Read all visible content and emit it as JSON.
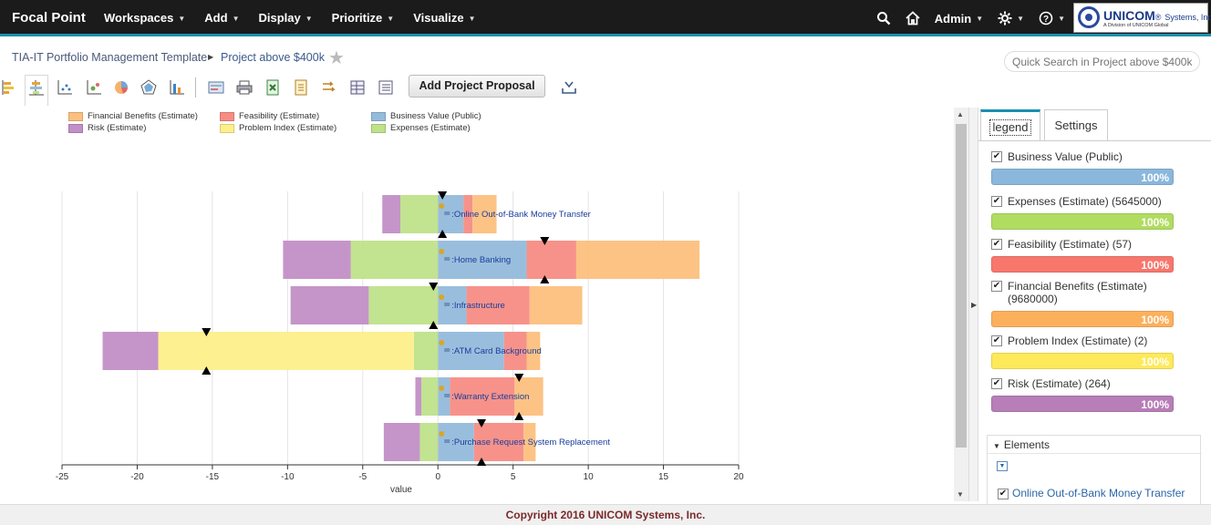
{
  "app": {
    "brand": "Focal Point",
    "nav": [
      "Workspaces",
      "Add",
      "Display",
      "Prioritize",
      "Visualize"
    ],
    "user": "Admin",
    "logo": {
      "name": "UNICOM",
      "suffix": "Systems, Inc.",
      "tagline": "A Division of UNICOM Global"
    }
  },
  "breadcrumb": {
    "workspace": "TIA-IT Portfolio Management Template",
    "view": "Project above $400k"
  },
  "search": {
    "placeholder": "Quick Search in Project above $400k"
  },
  "toolbar": {
    "add_proposal": "Add Project Proposal"
  },
  "colors": {
    "financial": "#fcc07e",
    "feasibility": "#f78c84",
    "business": "#93bbdb",
    "risk": "#c28fc6",
    "problem": "#fdef8a",
    "expenses": "#bfe18a"
  },
  "chart_data": {
    "type": "bar",
    "orientation": "horizontal-stacked-diverging",
    "xlabel": "value",
    "xlim": [
      -25,
      20
    ],
    "xticks": [
      -25,
      -20,
      -15,
      -10,
      -5,
      0,
      5,
      10,
      15,
      20
    ],
    "legend": [
      {
        "name": "Financial Benefits (Estimate)",
        "color": "#fcc07e"
      },
      {
        "name": "Feasibility (Estimate)",
        "color": "#f78c84"
      },
      {
        "name": "Business Value (Public)",
        "color": "#93bbdb"
      },
      {
        "name": "Risk (Estimate)",
        "color": "#c28fc6"
      },
      {
        "name": "Problem Index (Estimate)",
        "color": "#fdef8a"
      },
      {
        "name": "Expenses (Estimate)",
        "color": "#bfe18a"
      }
    ],
    "categories": [
      ":Online Out-of-Bank Money Transfer",
      ":Home Banking",
      ":Infrastructure",
      ":ATM Card Background",
      ":Warranty Extension",
      ":Purchase Request System Replacement"
    ],
    "series": [
      {
        "name": "Business Value (Public)",
        "side": "positive",
        "values": [
          1.7,
          5.9,
          1.9,
          4.4,
          0.8,
          2.4
        ]
      },
      {
        "name": "Feasibility (Estimate)",
        "side": "positive",
        "values": [
          0.6,
          3.3,
          4.2,
          1.5,
          4.3,
          3.3
        ]
      },
      {
        "name": "Financial Benefits (Estimate)",
        "side": "positive",
        "values": [
          1.6,
          8.2,
          3.5,
          0.9,
          1.9,
          0.8
        ]
      },
      {
        "name": "Expenses (Estimate)",
        "side": "negative",
        "values": [
          2.5,
          5.8,
          4.6,
          1.6,
          1.1,
          1.2
        ]
      },
      {
        "name": "Problem Index (Estimate)",
        "side": "negative",
        "values": [
          0,
          0,
          0,
          17.0,
          0,
          0
        ]
      },
      {
        "name": "Risk (Estimate)",
        "side": "negative",
        "values": [
          1.2,
          4.5,
          5.2,
          3.7,
          0.4,
          2.4
        ]
      }
    ],
    "markers": [
      0.3,
      7.1,
      -0.3,
      -15.4,
      5.4,
      2.9
    ]
  },
  "legend_panel": {
    "tabs": [
      "legend",
      "Settings"
    ],
    "items": [
      {
        "label": "Business Value (Public)",
        "percent": "100%",
        "color": "#8ab7db"
      },
      {
        "label": "Expenses (Estimate) (5645000)",
        "percent": "100%",
        "color": "#b0dc60"
      },
      {
        "label": "Feasibility (Estimate) (57)",
        "percent": "100%",
        "color": "#f7776d"
      },
      {
        "label": "Financial Benefits (Estimate) (9680000)",
        "percent": "100%",
        "color": "#fcb05c"
      },
      {
        "label": "Problem Index (Estimate) (2)",
        "percent": "100%",
        "color": "#fde95a"
      },
      {
        "label": "Risk (Estimate) (264)",
        "percent": "100%",
        "color": "#b77eb8"
      }
    ],
    "elements_title": "Elements",
    "first_element": "Online Out-of-Bank Money Transfer"
  },
  "footer": "Copyright 2016 UNICOM Systems, Inc."
}
